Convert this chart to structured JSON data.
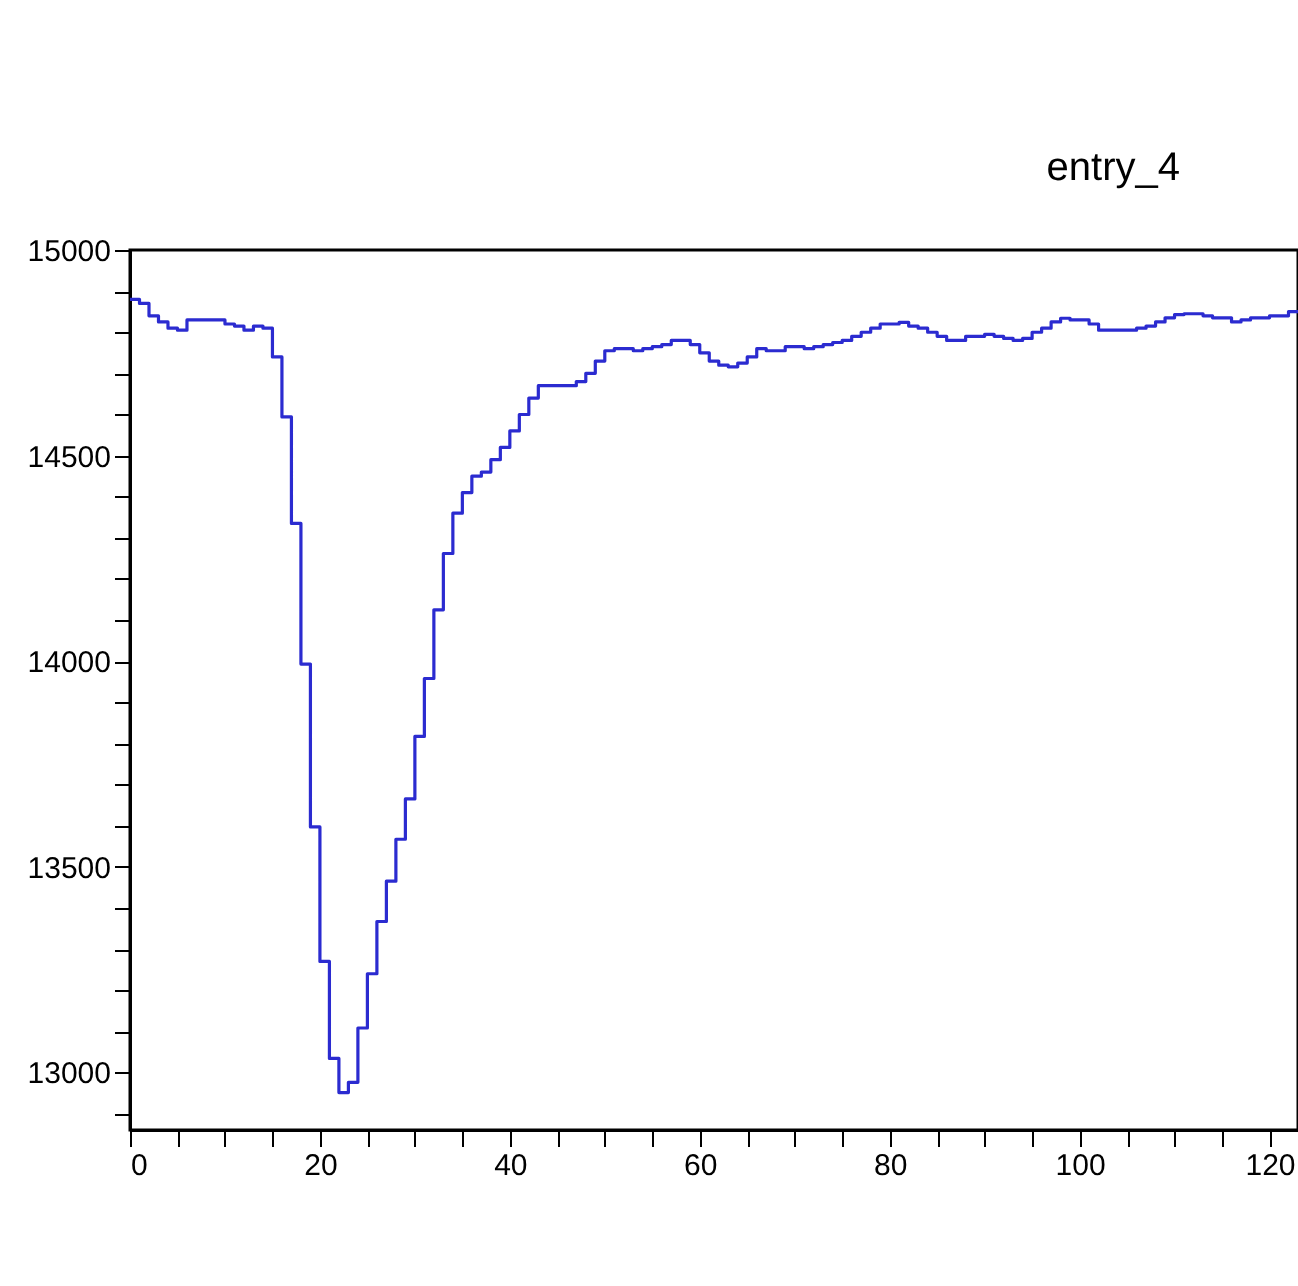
{
  "chart_data": {
    "type": "histogram",
    "title": "entry_4",
    "color": "#2b2bd0",
    "bins": [
      0,
      1,
      2,
      3,
      4,
      5,
      6,
      7,
      8,
      9,
      10,
      11,
      12,
      13,
      14,
      15,
      16,
      17,
      18,
      19,
      20,
      21,
      22,
      23,
      24,
      25,
      26,
      27,
      28,
      29,
      30,
      31,
      32,
      33,
      34,
      35,
      36,
      37,
      38,
      39,
      40,
      41,
      42,
      43,
      44,
      45,
      46,
      47,
      48,
      49,
      50,
      51,
      52,
      53,
      54,
      55,
      56,
      57,
      58,
      59,
      60,
      61,
      62,
      63,
      64,
      65,
      66,
      67,
      68,
      69,
      70,
      71,
      72,
      73,
      74,
      75,
      76,
      77,
      78,
      79,
      80,
      81,
      82,
      83,
      84,
      85,
      86,
      87,
      88,
      89,
      90,
      91,
      92,
      93,
      94,
      95,
      96,
      97,
      98,
      99,
      100,
      101,
      102,
      103,
      104,
      105,
      106,
      107,
      108,
      109,
      110,
      111,
      112,
      113,
      114,
      115,
      116,
      117,
      118,
      119,
      120,
      121,
      122,
      123
    ],
    "values": [
      14880,
      14870,
      14840,
      14825,
      14810,
      14805,
      14830,
      14830,
      14830,
      14830,
      14820,
      14815,
      14805,
      14815,
      14810,
      14740,
      14594,
      14335,
      13993,
      13597,
      13270,
      13034,
      12951,
      12976,
      13108,
      13240,
      13367,
      13465,
      13567,
      13665,
      13817,
      13958,
      14125,
      14262,
      14360,
      14410,
      14450,
      14460,
      14490,
      14520,
      14560,
      14600,
      14640,
      14670,
      14670,
      14670,
      14670,
      14680,
      14700,
      14730,
      14755,
      14760,
      14760,
      14755,
      14760,
      14765,
      14770,
      14780,
      14780,
      14770,
      14750,
      14730,
      14720,
      14716,
      14725,
      14740,
      14760,
      14755,
      14755,
      14765,
      14765,
      14760,
      14765,
      14770,
      14775,
      14780,
      14790,
      14800,
      14810,
      14820,
      14820,
      14824,
      14815,
      14810,
      14800,
      14790,
      14780,
      14780,
      14790,
      14790,
      14795,
      14790,
      14785,
      14780,
      14785,
      14800,
      14810,
      14825,
      14834,
      14830,
      14830,
      14820,
      14805,
      14805,
      14805,
      14805,
      14810,
      14815,
      14825,
      14835,
      14843,
      14845,
      14845,
      14840,
      14835,
      14835,
      14825,
      14830,
      14835,
      14835,
      14840,
      14840,
      14850
    ],
    "xlim": [
      0,
      123
    ],
    "xticks": [
      0,
      {
        "value": 5,
        "label": null
      },
      {
        "value": 10,
        "label": null
      },
      {
        "value": 15,
        "label": null
      },
      20,
      {
        "value": 25,
        "label": null
      },
      {
        "value": 30,
        "label": null
      },
      {
        "value": 35,
        "label": null
      },
      40,
      {
        "value": 45,
        "label": null
      },
      {
        "value": 50,
        "label": null
      },
      {
        "value": 55,
        "label": null
      },
      60,
      {
        "value": 65,
        "label": null
      },
      {
        "value": 70,
        "label": null
      },
      {
        "value": 75,
        "label": null
      },
      80,
      {
        "value": 85,
        "label": null
      },
      {
        "value": 90,
        "label": null
      },
      {
        "value": 95,
        "label": null
      },
      100,
      {
        "value": 105,
        "label": null
      },
      {
        "value": 110,
        "label": null
      },
      {
        "value": 115,
        "label": null
      },
      120
    ],
    "ylim": [
      12860,
      15000
    ],
    "yticks": [
      {
        "value": 12900,
        "label": null
      },
      13000,
      {
        "value": 13100,
        "label": null
      },
      {
        "value": 13200,
        "label": null
      },
      {
        "value": 13300,
        "label": null
      },
      {
        "value": 13400,
        "label": null
      },
      13500,
      {
        "value": 13600,
        "label": null
      },
      {
        "value": 13700,
        "label": null
      },
      {
        "value": 13800,
        "label": null
      },
      {
        "value": 13900,
        "label": null
      },
      14000,
      {
        "value": 14100,
        "label": null
      },
      {
        "value": 14200,
        "label": null
      },
      {
        "value": 14300,
        "label": null
      },
      {
        "value": 14400,
        "label": null
      },
      14500,
      {
        "value": 14600,
        "label": null
      },
      {
        "value": 14700,
        "label": null
      },
      {
        "value": 14800,
        "label": null
      },
      {
        "value": 14900,
        "label": null
      },
      15000
    ]
  }
}
